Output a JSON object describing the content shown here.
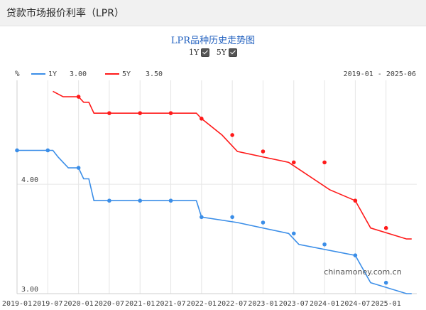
{
  "page": {
    "title": "贷款市场报价利率（LPR）"
  },
  "header": {
    "chart_title": "LPR品种历史走势图",
    "toggles": [
      {
        "label": "1Y",
        "checked": true
      },
      {
        "label": "5Y",
        "checked": true
      }
    ],
    "unit": "%",
    "legend": [
      {
        "label": "1Y",
        "value": "3.00",
        "color": "#3b8ee8"
      },
      {
        "label": "5Y",
        "value": "3.50",
        "color": "#ff1a1a"
      }
    ],
    "date_range": "2019-01 - 2025-06"
  },
  "watermark": "chinamoney.com.cn",
  "chart_data": {
    "type": "line",
    "title": "LPR品种历史走势图",
    "xlabel": "",
    "ylabel": "%",
    "xlim": [
      "2019-01",
      "2025-07"
    ],
    "ylim": [
      3.0,
      4.95
    ],
    "x_ticks": [
      "2019-01",
      "2019-07",
      "2020-01",
      "2020-07",
      "2021-01",
      "2021-07",
      "2022-01",
      "2022-07",
      "2023-01",
      "2023-07",
      "2024-01",
      "2024-07",
      "2025-01"
    ],
    "y_ticks": [
      3.0,
      4.0
    ],
    "y_tick_labels": [
      "3.00",
      "4.00"
    ],
    "grid": true,
    "series": [
      {
        "name": "1Y",
        "color": "#3b8ee8",
        "points": [
          [
            "2019-01",
            4.31
          ],
          [
            "2019-08",
            4.31
          ],
          [
            "2019-09",
            4.25
          ],
          [
            "2019-10",
            4.2
          ],
          [
            "2019-11",
            4.15
          ],
          [
            "2020-01",
            4.15
          ],
          [
            "2020-02",
            4.05
          ],
          [
            "2020-03",
            4.05
          ],
          [
            "2020-04",
            3.85
          ],
          [
            "2021-12",
            3.85
          ],
          [
            "2022-01",
            3.7
          ],
          [
            "2022-08",
            3.65
          ],
          [
            "2023-06",
            3.55
          ],
          [
            "2023-08",
            3.45
          ],
          [
            "2024-07",
            3.35
          ],
          [
            "2024-10",
            3.1
          ],
          [
            "2025-05",
            3.0
          ],
          [
            "2025-06",
            3.0
          ]
        ],
        "markers": [
          [
            "2019-01",
            4.31
          ],
          [
            "2019-07",
            4.31
          ],
          [
            "2020-01",
            4.15
          ],
          [
            "2020-07",
            3.85
          ],
          [
            "2021-01",
            3.85
          ],
          [
            "2021-07",
            3.85
          ],
          [
            "2022-01",
            3.7
          ],
          [
            "2022-07",
            3.7
          ],
          [
            "2023-01",
            3.65
          ],
          [
            "2023-07",
            3.55
          ],
          [
            "2024-01",
            3.45
          ],
          [
            "2024-07",
            3.35
          ],
          [
            "2025-01",
            3.1
          ]
        ]
      },
      {
        "name": "5Y",
        "color": "#ff1a1a",
        "points": [
          [
            "2019-08",
            4.85
          ],
          [
            "2019-10",
            4.8
          ],
          [
            "2020-01",
            4.8
          ],
          [
            "2020-02",
            4.75
          ],
          [
            "2020-03",
            4.75
          ],
          [
            "2020-04",
            4.65
          ],
          [
            "2021-12",
            4.65
          ],
          [
            "2022-01",
            4.6
          ],
          [
            "2022-05",
            4.45
          ],
          [
            "2022-08",
            4.3
          ],
          [
            "2023-06",
            4.2
          ],
          [
            "2024-02",
            3.95
          ],
          [
            "2024-07",
            3.85
          ],
          [
            "2024-10",
            3.6
          ],
          [
            "2025-05",
            3.5
          ],
          [
            "2025-06",
            3.5
          ]
        ],
        "markers": [
          [
            "2020-01",
            4.8
          ],
          [
            "2020-07",
            4.65
          ],
          [
            "2021-01",
            4.65
          ],
          [
            "2021-07",
            4.65
          ],
          [
            "2022-01",
            4.6
          ],
          [
            "2022-07",
            4.45
          ],
          [
            "2023-01",
            4.3
          ],
          [
            "2023-07",
            4.2
          ],
          [
            "2024-01",
            4.2
          ],
          [
            "2024-07",
            3.85
          ],
          [
            "2025-01",
            3.6
          ]
        ]
      }
    ]
  }
}
